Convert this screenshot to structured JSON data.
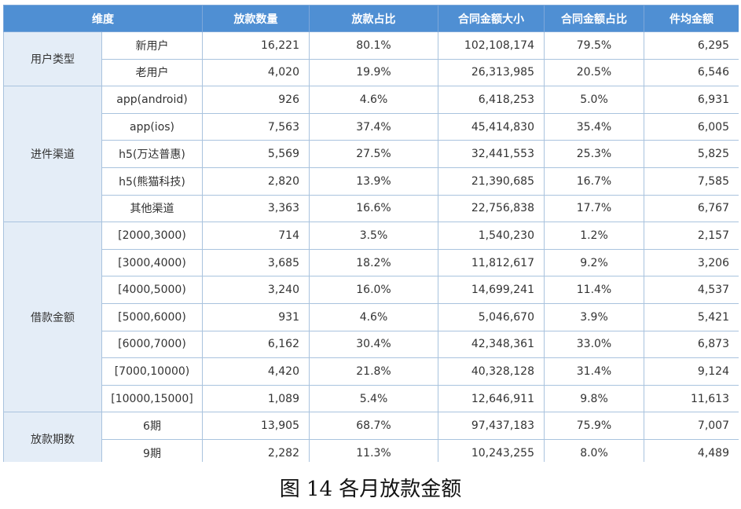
{
  "headers": [
    "维度",
    "放款数量",
    "放款占比",
    "合同金额大小",
    "合同金额占比",
    "件均金额"
  ],
  "groups": [
    {
      "label": "用户类型",
      "rows": [
        {
          "sub": "新用户",
          "count": "16,221",
          "count_pct": "80.1%",
          "amount": "102,108,174",
          "amount_pct": "79.5%",
          "avg": "6,295"
        },
        {
          "sub": "老用户",
          "count": "4,020",
          "count_pct": "19.9%",
          "amount": "26,313,985",
          "amount_pct": "20.5%",
          "avg": "6,546"
        }
      ]
    },
    {
      "label": "进件渠道",
      "rows": [
        {
          "sub": "app(android)",
          "count": "926",
          "count_pct": "4.6%",
          "amount": "6,418,253",
          "amount_pct": "5.0%",
          "avg": "6,931"
        },
        {
          "sub": "app(ios)",
          "count": "7,563",
          "count_pct": "37.4%",
          "amount": "45,414,830",
          "amount_pct": "35.4%",
          "avg": "6,005"
        },
        {
          "sub": "h5(万达普惠)",
          "count": "5,569",
          "count_pct": "27.5%",
          "amount": "32,441,553",
          "amount_pct": "25.3%",
          "avg": "5,825"
        },
        {
          "sub": "h5(熊猫科技)",
          "count": "2,820",
          "count_pct": "13.9%",
          "amount": "21,390,685",
          "amount_pct": "16.7%",
          "avg": "7,585"
        },
        {
          "sub": "其他渠道",
          "count": "3,363",
          "count_pct": "16.6%",
          "amount": "22,756,838",
          "amount_pct": "17.7%",
          "avg": "6,767"
        }
      ]
    },
    {
      "label": "借款金额",
      "rows": [
        {
          "sub": "[2000,3000)",
          "count": "714",
          "count_pct": "3.5%",
          "amount": "1,540,230",
          "amount_pct": "1.2%",
          "avg": "2,157"
        },
        {
          "sub": "[3000,4000)",
          "count": "3,685",
          "count_pct": "18.2%",
          "amount": "11,812,617",
          "amount_pct": "9.2%",
          "avg": "3,206"
        },
        {
          "sub": "[4000,5000)",
          "count": "3,240",
          "count_pct": "16.0%",
          "amount": "14,699,241",
          "amount_pct": "11.4%",
          "avg": "4,537"
        },
        {
          "sub": "[5000,6000)",
          "count": "931",
          "count_pct": "4.6%",
          "amount": "5,046,670",
          "amount_pct": "3.9%",
          "avg": "5,421"
        },
        {
          "sub": "[6000,7000)",
          "count": "6,162",
          "count_pct": "30.4%",
          "amount": "42,348,361",
          "amount_pct": "33.0%",
          "avg": "6,873"
        },
        {
          "sub": "[7000,10000)",
          "count": "4,420",
          "count_pct": "21.8%",
          "amount": "40,328,128",
          "amount_pct": "31.4%",
          "avg": "9,124"
        },
        {
          "sub": "[10000,15000]",
          "count": "1,089",
          "count_pct": "5.4%",
          "amount": "12,646,911",
          "amount_pct": "9.8%",
          "avg": "11,613"
        }
      ]
    },
    {
      "label": "放款期数",
      "rows": [
        {
          "sub": "6期",
          "count": "13,905",
          "count_pct": "68.7%",
          "amount": "97,437,183",
          "amount_pct": "75.9%",
          "avg": "7,007"
        },
        {
          "sub": "9期",
          "count": "2,282",
          "count_pct": "11.3%",
          "amount": "10,243,255",
          "amount_pct": "8.0%",
          "avg": "4,489"
        }
      ]
    }
  ],
  "caption": "图 14  各月放款金额",
  "colors": {
    "header_bg": "#4f8fd3",
    "header_text": "#ffffff",
    "dim_bg": "#e4edf7",
    "border": "#a9c3de"
  }
}
